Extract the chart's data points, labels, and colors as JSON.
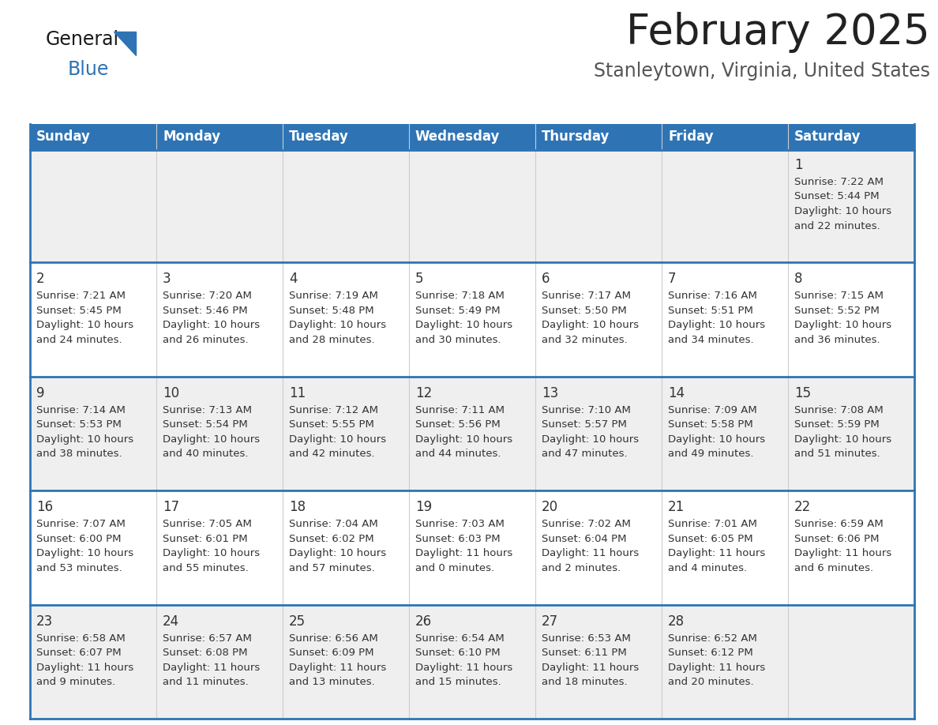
{
  "title": "February 2025",
  "subtitle": "Stanleytown, Virginia, United States",
  "header_bg": "#2E74B5",
  "header_text_color": "#FFFFFF",
  "row_bg_colors": [
    "#EFEFEF",
    "#FFFFFF",
    "#EFEFEF",
    "#FFFFFF",
    "#EFEFEF"
  ],
  "separator_color": "#2E74B5",
  "text_color": "#333333",
  "title_color": "#222222",
  "subtitle_color": "#555555",
  "logo_general_color": "#1a1a1a",
  "logo_blue_color": "#2E74B5",
  "days_of_week": [
    "Sunday",
    "Monday",
    "Tuesday",
    "Wednesday",
    "Thursday",
    "Friday",
    "Saturday"
  ],
  "calendar": [
    [
      {
        "day": null,
        "sunrise": null,
        "sunset": null,
        "daylight_h": null,
        "daylight_m": null
      },
      {
        "day": null,
        "sunrise": null,
        "sunset": null,
        "daylight_h": null,
        "daylight_m": null
      },
      {
        "day": null,
        "sunrise": null,
        "sunset": null,
        "daylight_h": null,
        "daylight_m": null
      },
      {
        "day": null,
        "sunrise": null,
        "sunset": null,
        "daylight_h": null,
        "daylight_m": null
      },
      {
        "day": null,
        "sunrise": null,
        "sunset": null,
        "daylight_h": null,
        "daylight_m": null
      },
      {
        "day": null,
        "sunrise": null,
        "sunset": null,
        "daylight_h": null,
        "daylight_m": null
      },
      {
        "day": "1",
        "sunrise": "7:22 AM",
        "sunset": "5:44 PM",
        "daylight_h": "10 hours",
        "daylight_m": "and 22 minutes."
      }
    ],
    [
      {
        "day": "2",
        "sunrise": "7:21 AM",
        "sunset": "5:45 PM",
        "daylight_h": "10 hours",
        "daylight_m": "and 24 minutes."
      },
      {
        "day": "3",
        "sunrise": "7:20 AM",
        "sunset": "5:46 PM",
        "daylight_h": "10 hours",
        "daylight_m": "and 26 minutes."
      },
      {
        "day": "4",
        "sunrise": "7:19 AM",
        "sunset": "5:48 PM",
        "daylight_h": "10 hours",
        "daylight_m": "and 28 minutes."
      },
      {
        "day": "5",
        "sunrise": "7:18 AM",
        "sunset": "5:49 PM",
        "daylight_h": "10 hours",
        "daylight_m": "and 30 minutes."
      },
      {
        "day": "6",
        "sunrise": "7:17 AM",
        "sunset": "5:50 PM",
        "daylight_h": "10 hours",
        "daylight_m": "and 32 minutes."
      },
      {
        "day": "7",
        "sunrise": "7:16 AM",
        "sunset": "5:51 PM",
        "daylight_h": "10 hours",
        "daylight_m": "and 34 minutes."
      },
      {
        "day": "8",
        "sunrise": "7:15 AM",
        "sunset": "5:52 PM",
        "daylight_h": "10 hours",
        "daylight_m": "and 36 minutes."
      }
    ],
    [
      {
        "day": "9",
        "sunrise": "7:14 AM",
        "sunset": "5:53 PM",
        "daylight_h": "10 hours",
        "daylight_m": "and 38 minutes."
      },
      {
        "day": "10",
        "sunrise": "7:13 AM",
        "sunset": "5:54 PM",
        "daylight_h": "10 hours",
        "daylight_m": "and 40 minutes."
      },
      {
        "day": "11",
        "sunrise": "7:12 AM",
        "sunset": "5:55 PM",
        "daylight_h": "10 hours",
        "daylight_m": "and 42 minutes."
      },
      {
        "day": "12",
        "sunrise": "7:11 AM",
        "sunset": "5:56 PM",
        "daylight_h": "10 hours",
        "daylight_m": "and 44 minutes."
      },
      {
        "day": "13",
        "sunrise": "7:10 AM",
        "sunset": "5:57 PM",
        "daylight_h": "10 hours",
        "daylight_m": "and 47 minutes."
      },
      {
        "day": "14",
        "sunrise": "7:09 AM",
        "sunset": "5:58 PM",
        "daylight_h": "10 hours",
        "daylight_m": "and 49 minutes."
      },
      {
        "day": "15",
        "sunrise": "7:08 AM",
        "sunset": "5:59 PM",
        "daylight_h": "10 hours",
        "daylight_m": "and 51 minutes."
      }
    ],
    [
      {
        "day": "16",
        "sunrise": "7:07 AM",
        "sunset": "6:00 PM",
        "daylight_h": "10 hours",
        "daylight_m": "and 53 minutes."
      },
      {
        "day": "17",
        "sunrise": "7:05 AM",
        "sunset": "6:01 PM",
        "daylight_h": "10 hours",
        "daylight_m": "and 55 minutes."
      },
      {
        "day": "18",
        "sunrise": "7:04 AM",
        "sunset": "6:02 PM",
        "daylight_h": "10 hours",
        "daylight_m": "and 57 minutes."
      },
      {
        "day": "19",
        "sunrise": "7:03 AM",
        "sunset": "6:03 PM",
        "daylight_h": "11 hours",
        "daylight_m": "and 0 minutes."
      },
      {
        "day": "20",
        "sunrise": "7:02 AM",
        "sunset": "6:04 PM",
        "daylight_h": "11 hours",
        "daylight_m": "and 2 minutes."
      },
      {
        "day": "21",
        "sunrise": "7:01 AM",
        "sunset": "6:05 PM",
        "daylight_h": "11 hours",
        "daylight_m": "and 4 minutes."
      },
      {
        "day": "22",
        "sunrise": "6:59 AM",
        "sunset": "6:06 PM",
        "daylight_h": "11 hours",
        "daylight_m": "and 6 minutes."
      }
    ],
    [
      {
        "day": "23",
        "sunrise": "6:58 AM",
        "sunset": "6:07 PM",
        "daylight_h": "11 hours",
        "daylight_m": "and 9 minutes."
      },
      {
        "day": "24",
        "sunrise": "6:57 AM",
        "sunset": "6:08 PM",
        "daylight_h": "11 hours",
        "daylight_m": "and 11 minutes."
      },
      {
        "day": "25",
        "sunrise": "6:56 AM",
        "sunset": "6:09 PM",
        "daylight_h": "11 hours",
        "daylight_m": "and 13 minutes."
      },
      {
        "day": "26",
        "sunrise": "6:54 AM",
        "sunset": "6:10 PM",
        "daylight_h": "11 hours",
        "daylight_m": "and 15 minutes."
      },
      {
        "day": "27",
        "sunrise": "6:53 AM",
        "sunset": "6:11 PM",
        "daylight_h": "11 hours",
        "daylight_m": "and 18 minutes."
      },
      {
        "day": "28",
        "sunrise": "6:52 AM",
        "sunset": "6:12 PM",
        "daylight_h": "11 hours",
        "daylight_m": "and 20 minutes."
      },
      {
        "day": null,
        "sunrise": null,
        "sunset": null,
        "daylight_h": null,
        "daylight_m": null
      }
    ]
  ]
}
